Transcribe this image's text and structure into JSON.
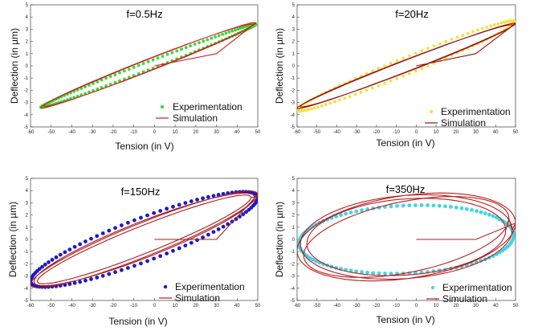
{
  "chart_data": [
    {
      "type": "line",
      "title": "f=0.5Hz",
      "xlabel": "Tension (in V)",
      "ylabel": "Deflection (in µm)",
      "xlim": [
        -60,
        50
      ],
      "ylim": [
        -5,
        5
      ],
      "x_ticks": [
        -60,
        -50,
        -40,
        -30,
        -20,
        -10,
        0,
        10,
        20,
        30,
        40,
        50
      ],
      "y_ticks": [
        -5,
        -4,
        -3,
        -2,
        -1,
        0,
        1,
        2,
        3,
        4,
        5
      ],
      "legend_position": "bottom-right",
      "series": [
        {
          "name": "Experimentation",
          "kind": "scatter",
          "color": "#33dd33",
          "center": [
            -3,
            0
          ],
          "amplitude_x": 52,
          "amplitude_y": 3.4,
          "phase": 0.1
        },
        {
          "name": "Simulation",
          "kind": "line",
          "color": "#cc2222",
          "center": [
            -3,
            0.05
          ],
          "amplitude_x": 52,
          "amplitude_y": 3.5,
          "phase": 0.14,
          "loops": 2
        }
      ]
    },
    {
      "type": "line",
      "title": "f=20Hz",
      "xlabel": "Tension (in V)",
      "ylabel": "Deflection (in µm)",
      "xlim": [
        -60,
        50
      ],
      "ylim": [
        -5,
        5
      ],
      "x_ticks": [
        -60,
        -50,
        -40,
        -30,
        -20,
        -10,
        0,
        10,
        20,
        30,
        40,
        50
      ],
      "y_ticks": [
        -5,
        -4,
        -3,
        -2,
        -1,
        0,
        1,
        2,
        3,
        4,
        5
      ],
      "legend_position": "bottom-right",
      "series": [
        {
          "name": "Experimentation",
          "kind": "scatter",
          "color": "#f2e238",
          "center": [
            -5,
            0
          ],
          "amplitude_x": 55,
          "amplitude_y": 3.7,
          "phase": 0.2
        },
        {
          "name": "Simulation",
          "kind": "line",
          "color": "#9a1010",
          "center": [
            -5,
            0
          ],
          "amplitude_x": 55,
          "amplitude_y": 3.5,
          "phase": 0.14,
          "loops": 2
        }
      ]
    },
    {
      "type": "line",
      "title": "f=150Hz",
      "xlabel": "Tension (in V)",
      "ylabel": "Deflection (in µm)",
      "xlim": [
        -60,
        50
      ],
      "ylim": [
        -5,
        5
      ],
      "x_ticks": [
        -60,
        -50,
        -40,
        -30,
        -20,
        -10,
        0,
        10,
        20,
        30,
        40,
        50
      ],
      "y_ticks": [
        -5,
        -4,
        -3,
        -2,
        -1,
        0,
        1,
        2,
        3,
        4,
        5
      ],
      "legend_position": "bottom-right",
      "series": [
        {
          "name": "Experimentation",
          "kind": "scatter",
          "color": "#1a1acc",
          "center": [
            -5,
            0
          ],
          "amplitude_x": 55,
          "amplitude_y": 3.9,
          "phase": 0.5
        },
        {
          "name": "Simulation",
          "kind": "line",
          "color": "#b01818",
          "center": [
            -5,
            0
          ],
          "amplitude_x": 55,
          "amplitude_y": 3.95,
          "phase": 0.38,
          "loops": 3
        }
      ]
    },
    {
      "type": "line",
      "title": "f=350Hz",
      "xlabel": "Tension (in V)",
      "ylabel": "Deflection (in µm)",
      "xlim": [
        -60,
        50
      ],
      "ylim": [
        -5,
        5
      ],
      "x_ticks": [
        -60,
        -50,
        -40,
        -30,
        -20,
        -10,
        0,
        10,
        20,
        30,
        40,
        50
      ],
      "y_ticks": [
        -5,
        -4,
        -3,
        -2,
        -1,
        0,
        1,
        2,
        3,
        4,
        5
      ],
      "legend_position": "bottom-right",
      "series": [
        {
          "name": "Experimentation",
          "kind": "scatter",
          "color": "#3fd6e6",
          "center": [
            -5,
            0
          ],
          "amplitude_x": 54,
          "amplitude_y": 2.8,
          "phase": 1.45
        },
        {
          "name": "Simulation",
          "kind": "line",
          "color": "#bb1d1d",
          "center": [
            -5,
            0.2
          ],
          "amplitude_x": 55,
          "amplitude_y": 3.6,
          "phase": 1.25,
          "loops": 4
        }
      ]
    }
  ]
}
